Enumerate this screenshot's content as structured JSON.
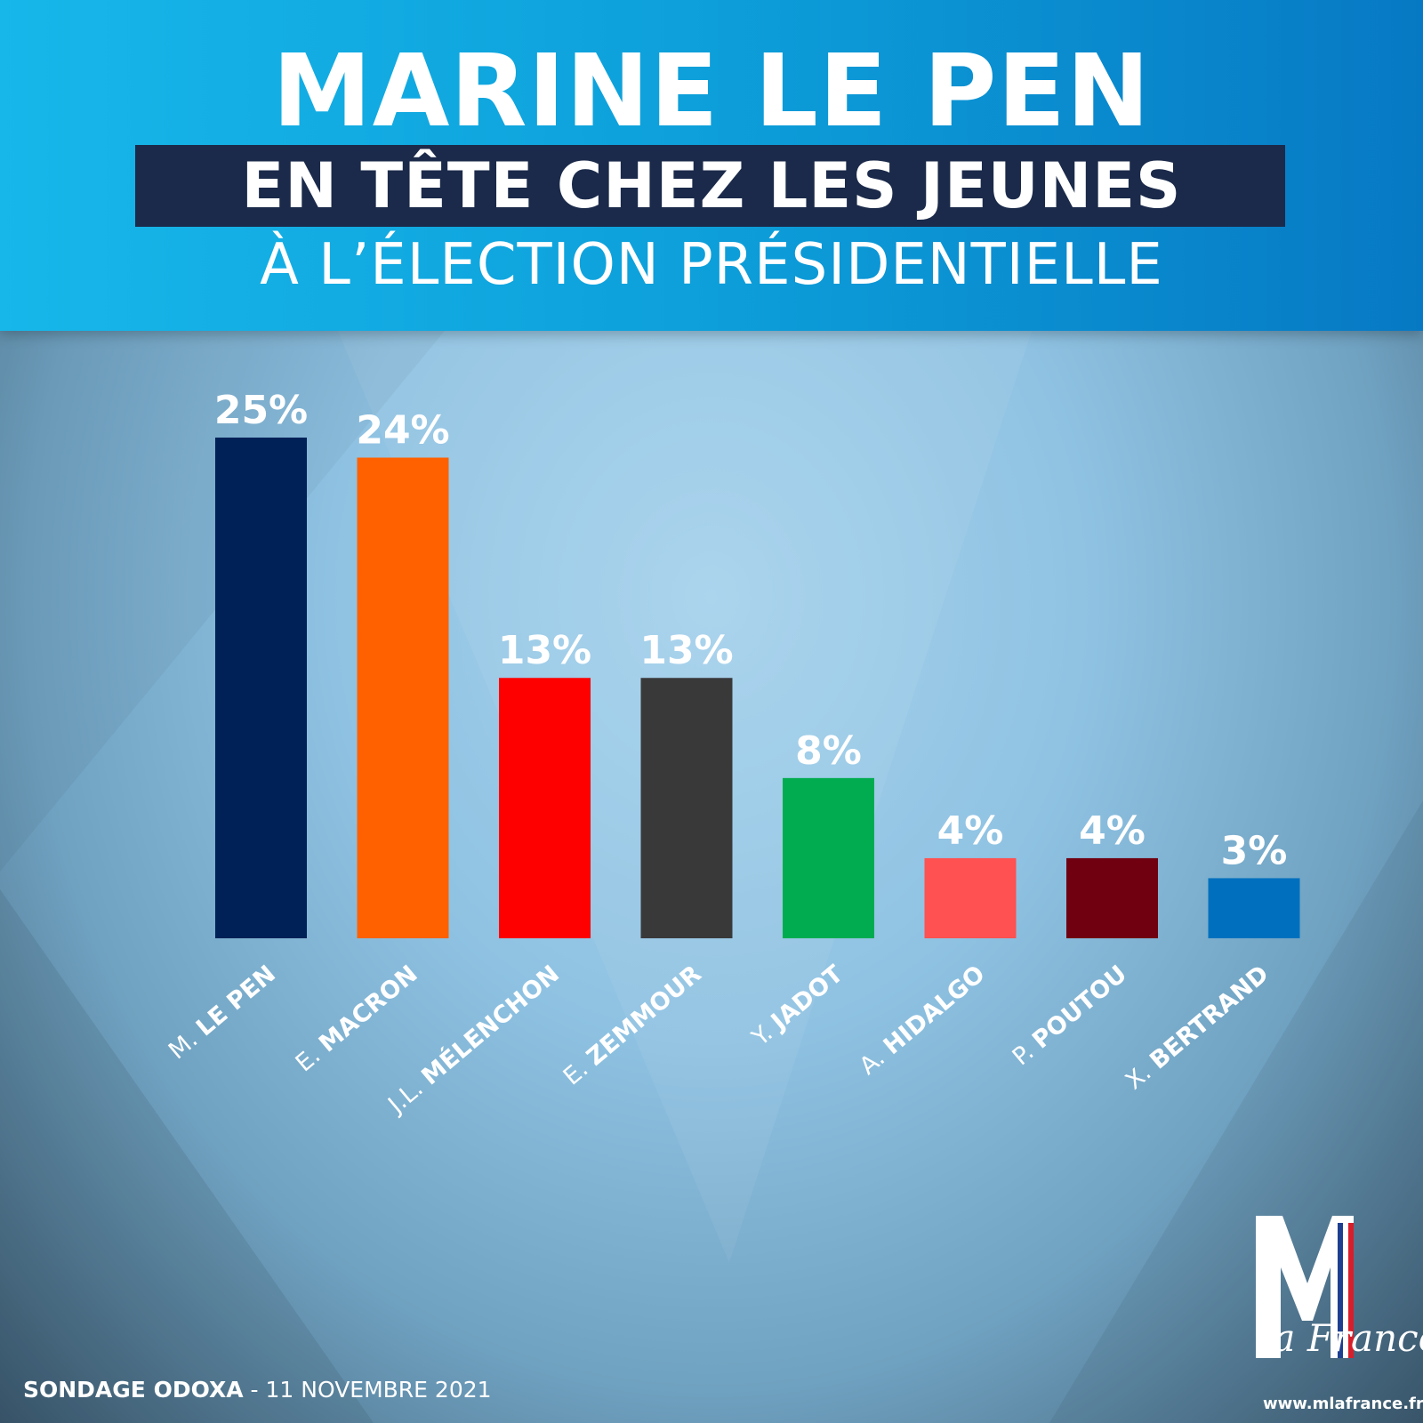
{
  "header": {
    "title": "MARINE LE PEN",
    "subtitle": "EN TÊTE CHEZ LES JEUNES",
    "third_line": "À L’ÉLECTION PRÉSIDENTIELLE",
    "gradient_colors": [
      "#17b7ea",
      "#0779c4"
    ],
    "band_color": "#1b2a4a"
  },
  "chart_data": {
    "type": "bar",
    "title": "MARINE LE PEN EN TÊTE CHEZ LES JEUNES À L’ÉLECTION PRÉSIDENTIELLE",
    "categories": [
      {
        "prefix": "M.",
        "name": "LE PEN"
      },
      {
        "prefix": "E.",
        "name": "MACRON"
      },
      {
        "prefix": "J.L.",
        "name": "MÉLENCHON"
      },
      {
        "prefix": "E.",
        "name": "ZEMMOUR"
      },
      {
        "prefix": "Y.",
        "name": "JADOT"
      },
      {
        "prefix": "A.",
        "name": "HIDALGO"
      },
      {
        "prefix": "P.",
        "name": "POUTOU"
      },
      {
        "prefix": "X.",
        "name": "BERTRAND"
      }
    ],
    "values": [
      25,
      24,
      13,
      13,
      8,
      4,
      4,
      3
    ],
    "value_labels": [
      "25%",
      "24%",
      "13%",
      "13%",
      "8%",
      "4%",
      "4%",
      "3%"
    ],
    "colors": [
      "#002157",
      "#ff6100",
      "#ff0000",
      "#3a393a",
      "#00ac4f",
      "#ff5151",
      "#700010",
      "#0070be"
    ],
    "unit": "%",
    "ylim": [
      0,
      25
    ],
    "grid": false,
    "legend": "none"
  },
  "footer": {
    "source_bold": "SONDAGE ODOXA",
    "source_rest": " - 11 NOVEMBRE 2021",
    "logo_letter": "M",
    "logo_text": "la France",
    "website": "www.mlafrance.fr"
  }
}
